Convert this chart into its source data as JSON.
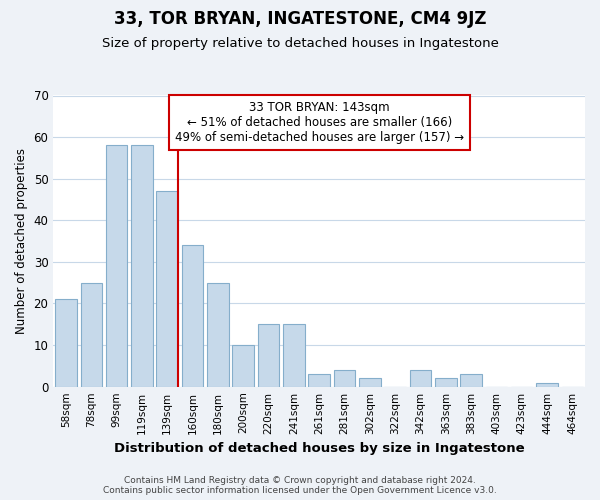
{
  "title": "33, TOR BRYAN, INGATESTONE, CM4 9JZ",
  "subtitle": "Size of property relative to detached houses in Ingatestone",
  "xlabel": "Distribution of detached houses by size in Ingatestone",
  "ylabel": "Number of detached properties",
  "bar_labels": [
    "58sqm",
    "78sqm",
    "99sqm",
    "119sqm",
    "139sqm",
    "160sqm",
    "180sqm",
    "200sqm",
    "220sqm",
    "241sqm",
    "261sqm",
    "281sqm",
    "302sqm",
    "322sqm",
    "342sqm",
    "363sqm",
    "383sqm",
    "403sqm",
    "423sqm",
    "444sqm",
    "464sqm"
  ],
  "bar_values": [
    21,
    25,
    58,
    58,
    47,
    34,
    25,
    10,
    15,
    15,
    3,
    4,
    2,
    0,
    4,
    2,
    3,
    0,
    0,
    1,
    0
  ],
  "bar_color": "#c6d9ea",
  "bar_edge_color": "#85aecb",
  "marker_index": 4,
  "marker_color": "#cc0000",
  "ylim": [
    0,
    70
  ],
  "yticks": [
    0,
    10,
    20,
    30,
    40,
    50,
    60,
    70
  ],
  "annotation_line1": "33 TOR BRYAN: 143sqm",
  "annotation_line2": "← 51% of detached houses are smaller (166)",
  "annotation_line3": "49% of semi-detached houses are larger (157) →",
  "annotation_box_color": "#ffffff",
  "annotation_box_edge": "#cc0000",
  "footer_line1": "Contains HM Land Registry data © Crown copyright and database right 2024.",
  "footer_line2": "Contains public sector information licensed under the Open Government Licence v3.0.",
  "background_color": "#eef2f7",
  "plot_background_color": "#ffffff",
  "grid_color": "#c8d8e8",
  "title_fontsize": 12,
  "subtitle_fontsize": 9.5
}
